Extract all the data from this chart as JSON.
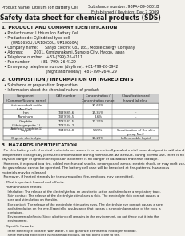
{
  "bg_color": "#f2f0eb",
  "header_left": "Product Name: Lithium Ion Battery Cell",
  "header_right_line1": "Substance number: 98PA489-0001B",
  "header_right_line2": "Established / Revision: Dec.7.2009",
  "title": "Safety data sheet for chemical products (SDS)",
  "section1_title": "1. PRODUCT AND COMPANY IDENTIFICATION",
  "section1_lines": [
    "  • Product name: Lithium Ion Battery Cell",
    "  • Product code: Cylindrical-type cell",
    "        (UR18650U, UR18650U, UR18650A)",
    "  • Company name:      Sanyo Electric Co., Ltd., Mobile Energy Company",
    "  • Address:         2001, Kamizunakami, Sumoto-City, Hyogo, Japan",
    "  • Telephone number:   +81-(799)-26-4111",
    "  • Fax number:        +81-(799)-26-4129",
    "  • Emergency telephone number (daytime): +81-799-26-3942",
    "                                     (Night and holiday): +81-799-26-4129"
  ],
  "section2_title": "2. COMPOSITION / INFORMATION ON INGREDIENTS",
  "section2_intro": "  • Substance or preparation: Preparation",
  "section2_sub": "  • Information about the chemical nature of product:",
  "table_header_row1": [
    "Component",
    "CAS number",
    "Concentration /",
    "Classification and"
  ],
  "table_header_row2": [
    "(Common/Several name)",
    "",
    "Concentration range",
    "hazard labeling"
  ],
  "table_rows": [
    [
      "Lithium cobalt oxide\n(LiMn/CoO₂)",
      "-",
      "30-60%",
      "-"
    ],
    [
      "Iron",
      "7439-89-6",
      "15-35%",
      "-"
    ],
    [
      "Aluminum",
      "7429-90-5",
      "2-6%",
      "-"
    ],
    [
      "Graphite\n(Fibric graphite-1)\n(Artificial graphite-1)",
      "7782-42-5\n7782-44-2",
      "10-20%",
      "-"
    ],
    [
      "Copper",
      "7440-50-8",
      "5-15%",
      "Sensitization of the skin\ngroup No.2"
    ],
    [
      "Organic electrolyte",
      "-",
      "10-20%",
      "Inflammable liquid"
    ]
  ],
  "section3_title": "3. HAZARDS IDENTIFICATION",
  "section3_paras": [
    "  For this battery cell, chemical materials are stored in a hermetically-sealed metal case, designed to withstand",
    "temperature changes by pressure-compensation during normal use. As a result, during normal use, there is no",
    "physical danger of ignition or explosion and there is no danger of hazardous materials leakage.",
    "  However, if exposed to a fire, added mechanical shocks, decomposed, almost electric shock, or may melt use,",
    "the gas release cannot be operated. The battery cell case will be breached at fire-patterns; hazardous",
    "materials may be released.",
    "  Moreover, if heated strongly by the surrounding fire, emit gas may be emitted."
  ],
  "section3_bullet1": "  • Most important hazard and effects:",
  "section3_human": "    Human health effects:",
  "section3_human_lines": [
    "      Inhalation: The release of the electrolyte has an anesthetic action and stimulates a respiratory tract.",
    "      Skin contact: The release of the electrolyte stimulates a skin. The electrolyte skin contact causes a",
    "      sore and stimulation on the skin.",
    "      Eye contact: The release of the electrolyte stimulates eyes. The electrolyte eye contact causes a sore",
    "      and stimulation on the eye. Especially, a substance that causes a strong inflammation of the eyes is",
    "      contained.",
    "      Environmental effects: Since a battery cell remains in the environment, do not throw out it into the",
    "      environment."
  ],
  "section3_specific": "  • Specific hazards:",
  "section3_specific_lines": [
    "      If the electrolyte contacts with water, it will generate detrimental hydrogen fluoride.",
    "      Since the said electrolyte is inflammable liquid, do not bring close to fire."
  ],
  "text_color": "#1a1a1a",
  "line_color": "#888888",
  "table_header_bg": "#cccccc",
  "table_line_color": "#777777"
}
